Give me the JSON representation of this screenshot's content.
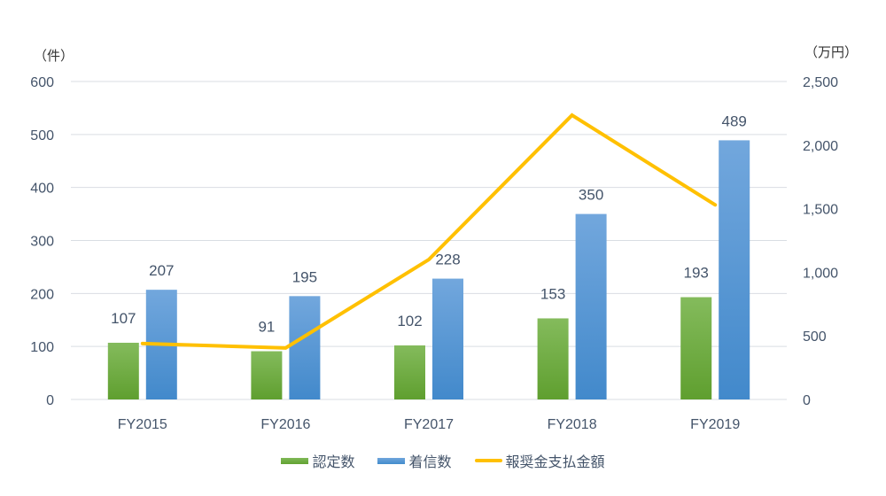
{
  "chart_data": {
    "type": "bar",
    "title": "",
    "categories": [
      "FY2015",
      "FY2016",
      "FY2017",
      "FY2018",
      "FY2019"
    ],
    "series": [
      {
        "name": "認定数",
        "type": "bar",
        "axis": "left",
        "color": "#70ad47",
        "values": [
          107,
          91,
          102,
          153,
          193
        ]
      },
      {
        "name": "着信数",
        "type": "bar",
        "axis": "left",
        "color": "#5b9bd5",
        "values": [
          207,
          195,
          228,
          350,
          489
        ]
      },
      {
        "name": "報奨金支払金額",
        "type": "line",
        "axis": "right",
        "color": "#ffc000",
        "values": [
          440,
          405,
          1100,
          2235,
          1530
        ]
      }
    ],
    "left_axis": {
      "label": "（件）",
      "ylim": [
        0,
        600
      ],
      "ticks": [
        "0",
        "100",
        "200",
        "300",
        "400",
        "500",
        "600"
      ]
    },
    "right_axis": {
      "label": "（万円）",
      "ylim": [
        0,
        2500
      ],
      "ticks": [
        "0",
        "500",
        "1,000",
        "1,500",
        "2,000",
        "2,500"
      ]
    },
    "xlabel": "",
    "grid": true,
    "legend_position": "bottom",
    "data_labels": true
  },
  "legend": {
    "items": [
      {
        "label": "認定数",
        "color": "#70ad47",
        "kind": "bar"
      },
      {
        "label": "着信数",
        "color": "#5b9bd5",
        "kind": "bar"
      },
      {
        "label": "報奨金支払金額",
        "color": "#ffc000",
        "kind": "line"
      }
    ]
  },
  "units": {
    "left": "（件）",
    "right": "（万円）"
  }
}
